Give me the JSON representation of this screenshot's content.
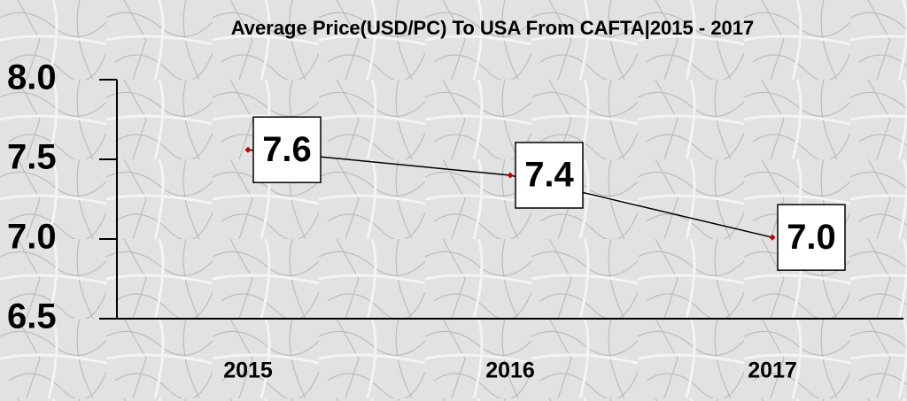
{
  "chart_data": {
    "type": "line",
    "title": "Average Price(USD/PC) To USA From CAFTA|2015 - 2017",
    "categories": [
      "2015",
      "2016",
      "2017"
    ],
    "series": [
      {
        "color": "#000000",
        "marker_color": "#c00000",
        "values": [
          7.56,
          7.4,
          7.01
        ],
        "value_labels": [
          "7.6",
          "7.4",
          "7.0"
        ]
      }
    ],
    "ylim": [
      6.5,
      8.0
    ],
    "yticks": [
      {
        "value": 6.5,
        "label": "6.5"
      },
      {
        "value": 7,
        "label": "7.0"
      },
      7.5,
      {
        "value": 8,
        "label": "8.0"
      }
    ]
  }
}
